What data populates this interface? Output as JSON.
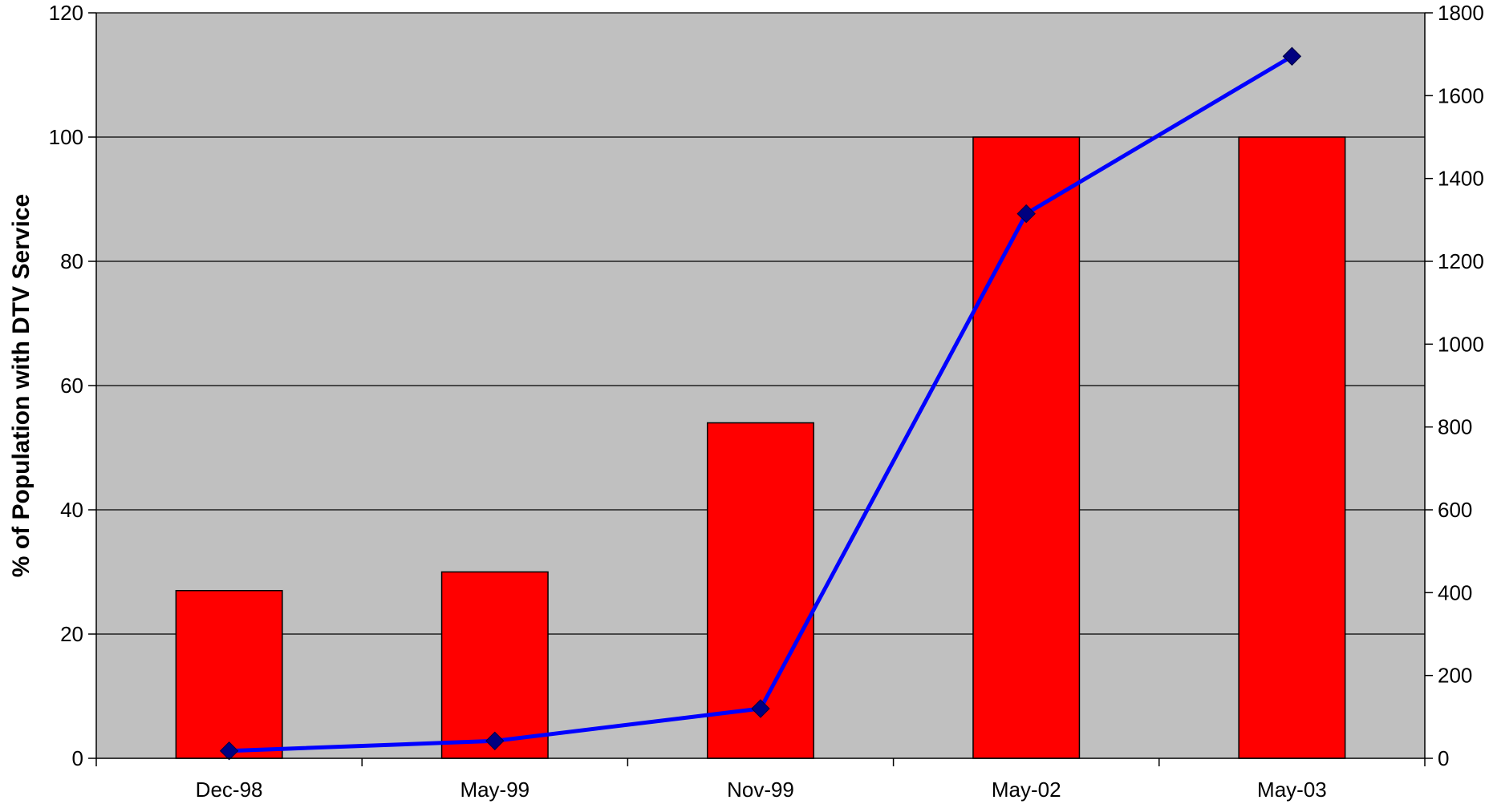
{
  "chart_data": {
    "type": "bar",
    "categories": [
      "Dec-98",
      "May-99",
      "Nov-99",
      "May-02",
      "May-03"
    ],
    "ylabel": "% of Population with DTV Service",
    "y_left": {
      "min": 0,
      "max": 120,
      "ticks": [
        0,
        20,
        40,
        60,
        80,
        100,
        120
      ]
    },
    "y_right": {
      "min": 0,
      "max": 1800,
      "ticks": [
        0,
        200,
        400,
        600,
        800,
        1000,
        1200,
        1400,
        1600,
        1800
      ]
    },
    "grid": true,
    "series": [
      {
        "type": "bar",
        "axis": "left",
        "values": [
          27,
          30,
          54,
          100,
          100
        ],
        "color": "#ff0000"
      },
      {
        "type": "line",
        "axis": "right",
        "values": [
          18,
          42,
          120,
          1315,
          1695
        ],
        "color": "#0000ff",
        "marker_color": "#000080"
      }
    ],
    "plot_background": "#c0c0c0"
  }
}
